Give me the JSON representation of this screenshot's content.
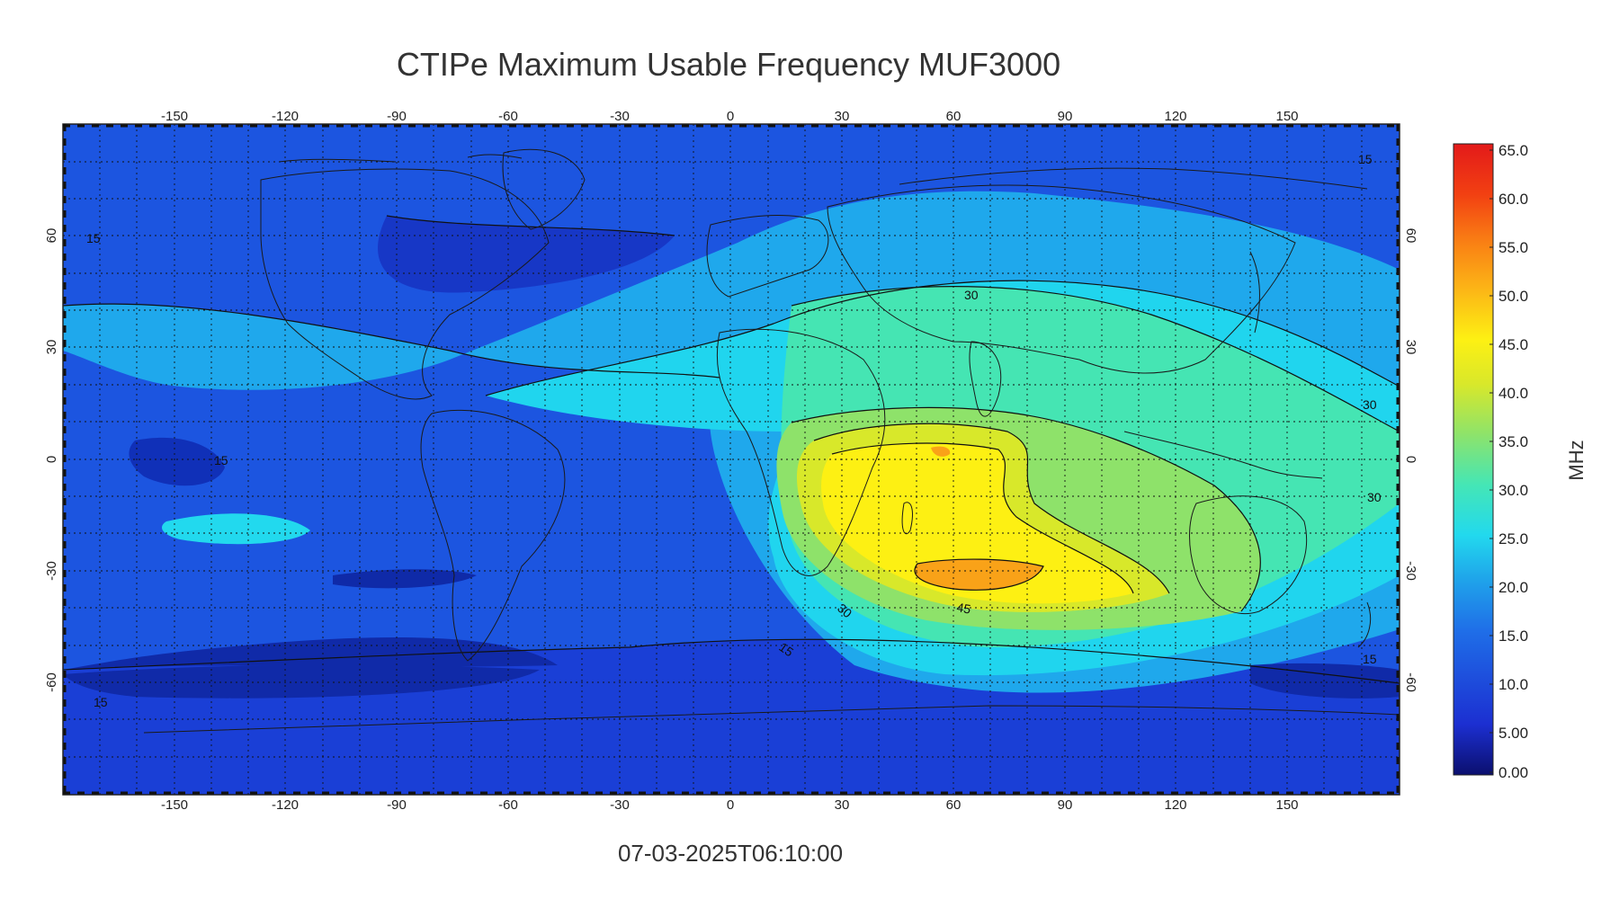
{
  "title": "CTIPe Maximum Usable Frequency MUF3000",
  "timestamp": "07-03-2025T06:10:00",
  "lon_ticks": [
    "-150",
    "-120",
    "-90",
    "-60",
    "-30",
    "0",
    "30",
    "60",
    "90",
    "120",
    "150"
  ],
  "lat_ticks": [
    "60",
    "30",
    "0",
    "-30",
    "-60"
  ],
  "lat_ticks_right": [
    "60",
    "30",
    "0",
    "-30",
    "-60"
  ],
  "colorbar": {
    "unit": "MHz",
    "labels": [
      "65.0",
      "60.0",
      "55.0",
      "50.0",
      "45.0",
      "40.0",
      "35.0",
      "30.0",
      "25.0",
      "20.0",
      "15.0",
      "10.0",
      "5.00",
      "0.00"
    ],
    "stops": [
      "#0b0f6e",
      "#1c2fd1",
      "#1f6fe8",
      "#1fa4ea",
      "#22d9ee",
      "#45e6b5",
      "#8ee36a",
      "#d9e82a",
      "#fdf013",
      "#fcb516",
      "#f97b14",
      "#f24012",
      "#e31a1a"
    ]
  },
  "contour_labels": [
    "15",
    "15",
    "15",
    "15",
    "15",
    "15",
    "30",
    "30",
    "30",
    "30",
    "45"
  ]
}
